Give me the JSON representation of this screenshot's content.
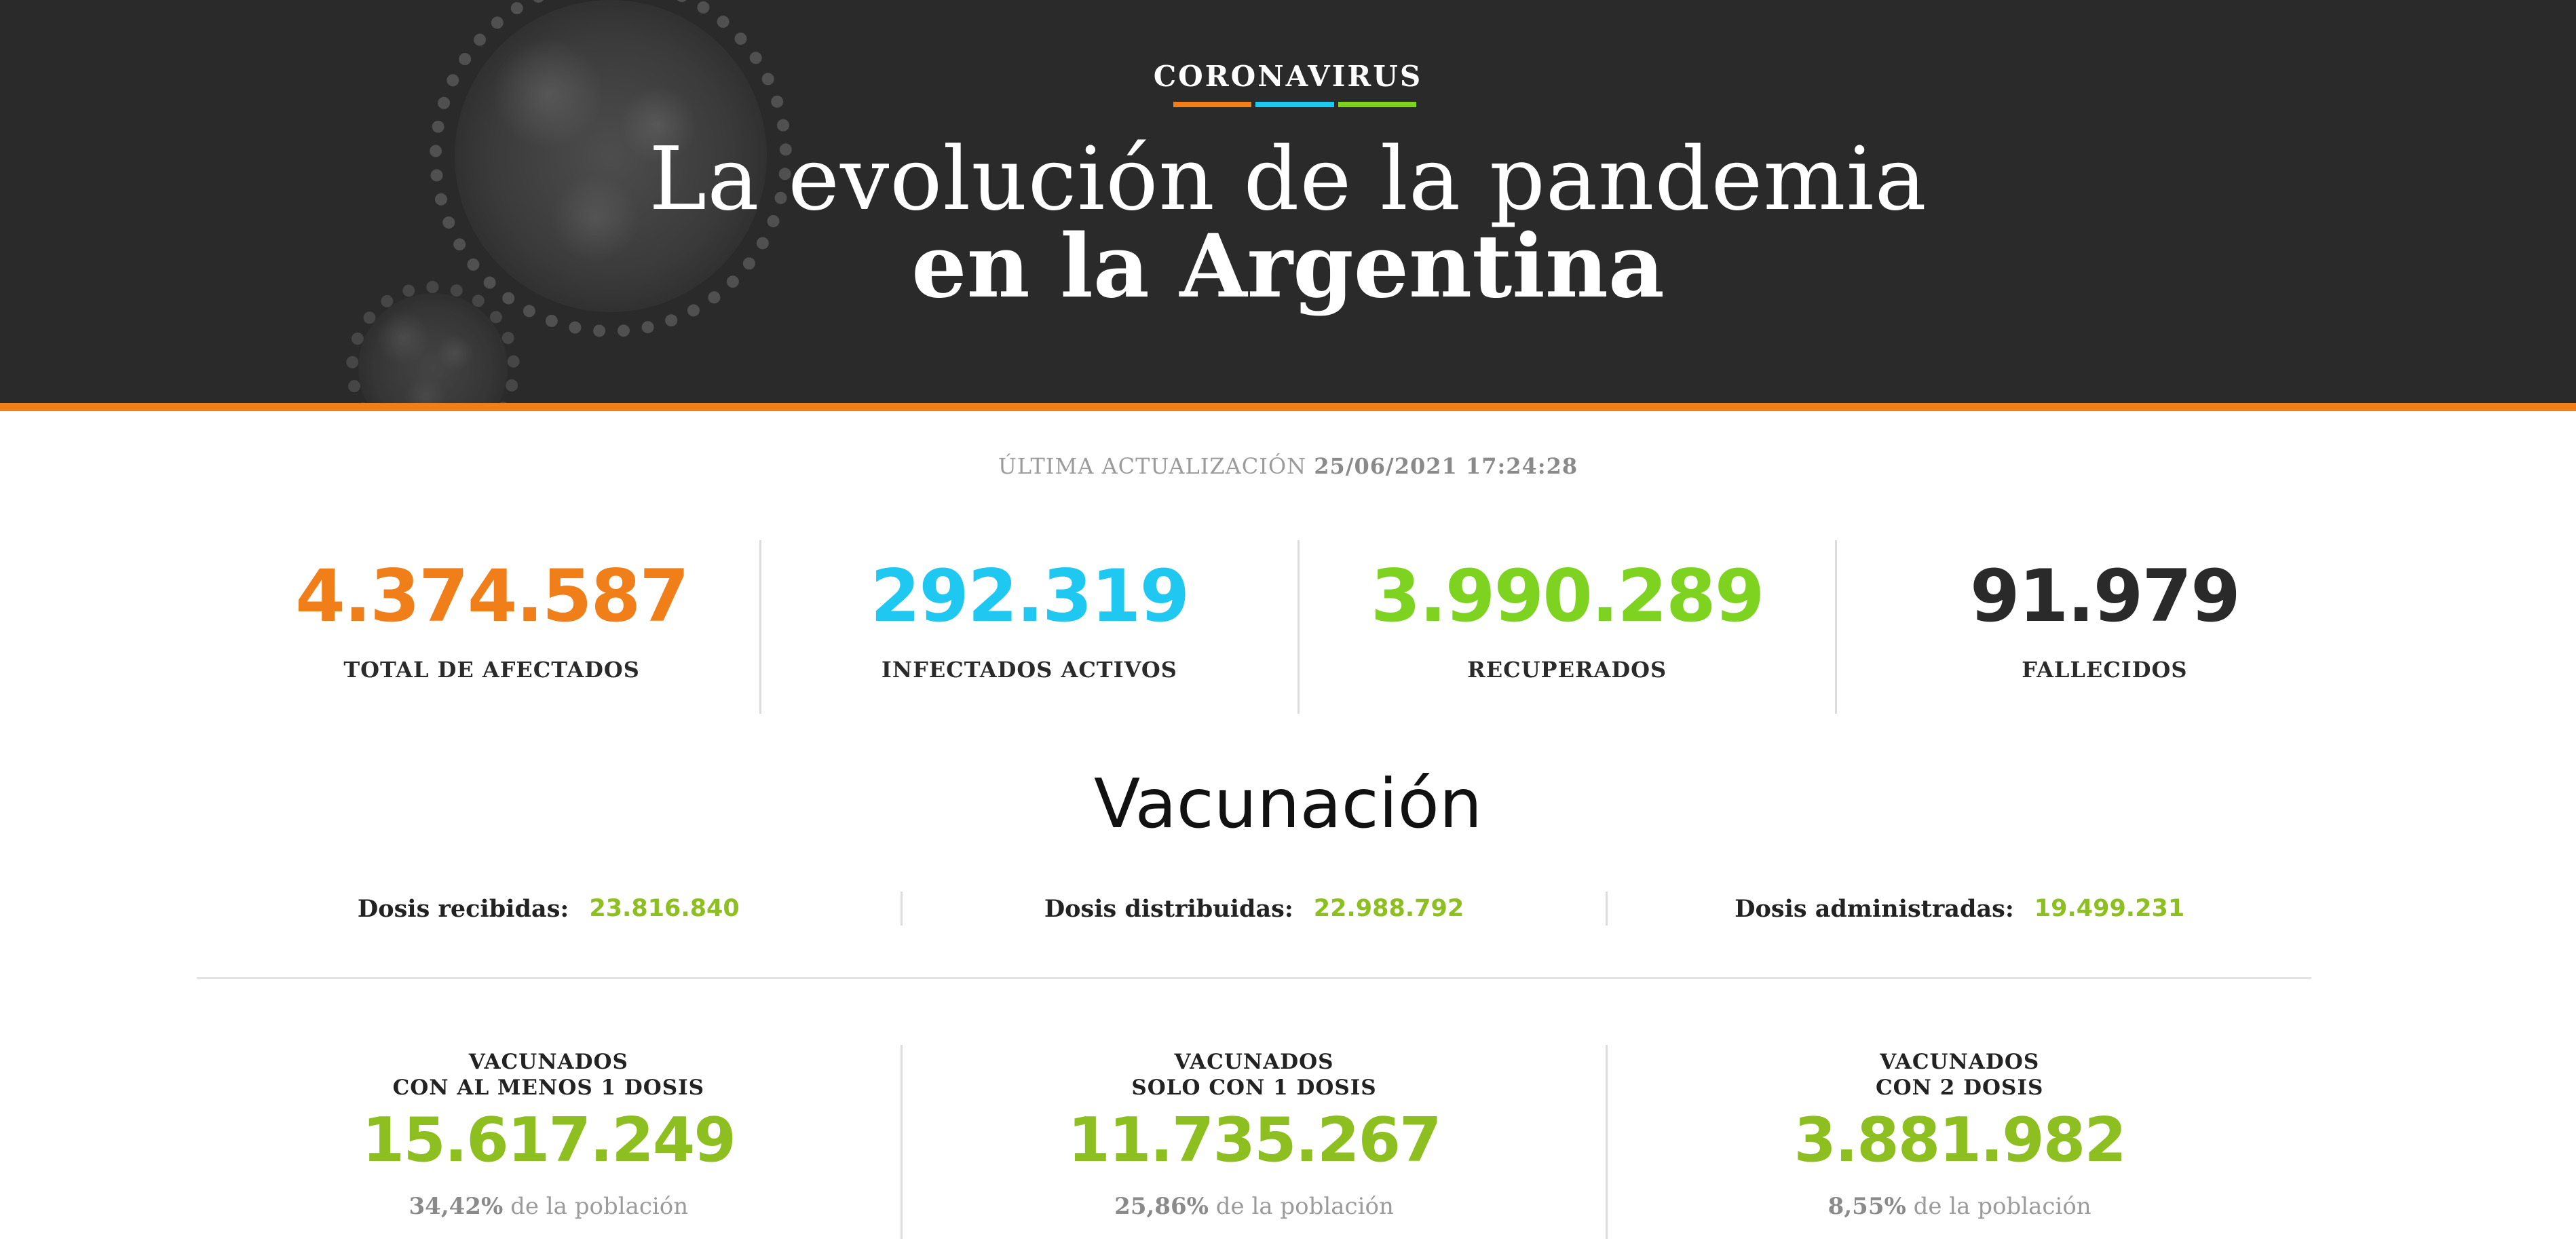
{
  "hero": {
    "kicker": "CORONAVIRUS",
    "title_light": "La evolución de la pandemia",
    "title_bold": "en la Argentina"
  },
  "update": {
    "label": "ÚLTIMA ACTUALIZACIÓN",
    "timestamp": "25/06/2021 17:24:28"
  },
  "stats": [
    {
      "value": "4.374.587",
      "label": "TOTAL DE AFECTADOS",
      "color": "#f07f1a"
    },
    {
      "value": "292.319",
      "label": "INFECTADOS ACTIVOS",
      "color": "#1ec8f0"
    },
    {
      "value": "3.990.289",
      "label": "RECUPERADOS",
      "color": "#7ed321"
    },
    {
      "value": "91.979",
      "label": "FALLECIDOS",
      "color": "#2a2a2a"
    }
  ],
  "vaccination": {
    "title": "Vacunación",
    "doses": [
      {
        "label": "Dosis recibidas:",
        "value": "23.816.840"
      },
      {
        "label": "Dosis distribuidas:",
        "value": "22.988.792"
      },
      {
        "label": "Dosis administradas:",
        "value": "19.499.231"
      }
    ],
    "vaccinated": [
      {
        "title_line1": "VACUNADOS",
        "title_line2": "CON AL MENOS 1 DOSIS",
        "value": "15.617.249",
        "percent": "34,42%",
        "suffix": "de la población"
      },
      {
        "title_line1": "VACUNADOS",
        "title_line2": "SOLO CON 1 DOSIS",
        "value": "11.735.267",
        "percent": "25,86%",
        "suffix": "de la población"
      },
      {
        "title_line1": "VACUNADOS",
        "title_line2": "CON 2 DOSIS",
        "value": "3.881.982",
        "percent": "8,55%",
        "suffix": "de la población"
      }
    ]
  },
  "colors": {
    "hero_bg": "#2a2a2a",
    "accent_orange": "#f07f1a",
    "accent_blue": "#1ec8f0",
    "accent_green": "#7ed321",
    "vaccine_green": "#8cbf1f"
  }
}
